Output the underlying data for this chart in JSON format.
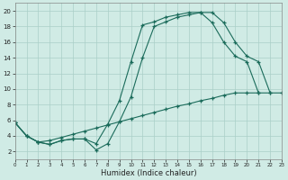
{
  "background_color": "#d0ebe5",
  "grid_color": "#aacfc8",
  "line_color": "#1a6b5a",
  "xlabel": "Humidex (Indice chaleur)",
  "xlim": [
    0,
    23
  ],
  "ylim": [
    1,
    21
  ],
  "xticks": [
    0,
    1,
    2,
    3,
    4,
    5,
    6,
    7,
    8,
    9,
    10,
    11,
    12,
    13,
    14,
    15,
    16,
    17,
    18,
    19,
    20,
    21,
    22,
    23
  ],
  "yticks": [
    2,
    4,
    6,
    8,
    10,
    12,
    14,
    16,
    18,
    20
  ],
  "curve1_x": [
    0,
    1,
    2,
    3,
    4,
    5,
    6,
    7,
    8,
    9,
    10,
    11,
    12,
    13,
    14,
    15,
    16,
    17,
    18,
    19,
    20,
    21,
    22
  ],
  "curve1_y": [
    5.7,
    4.0,
    3.2,
    2.9,
    3.4,
    3.6,
    3.6,
    2.2,
    3.0,
    5.8,
    9.0,
    14.0,
    18.0,
    18.6,
    19.2,
    19.5,
    19.8,
    19.8,
    18.5,
    16.0,
    14.2,
    13.5,
    9.5
  ],
  "curve2_x": [
    0,
    1,
    2,
    3,
    4,
    5,
    6,
    7,
    8,
    9,
    10,
    11,
    12,
    13,
    14,
    15,
    16,
    17,
    18,
    19,
    20,
    21
  ],
  "curve2_y": [
    5.7,
    4.0,
    3.2,
    2.9,
    3.4,
    3.6,
    3.6,
    3.0,
    5.5,
    8.5,
    13.5,
    18.2,
    18.6,
    19.2,
    19.5,
    19.8,
    19.8,
    18.5,
    16.0,
    14.2,
    13.5,
    9.5
  ],
  "curve3_x": [
    0,
    1,
    2,
    3,
    4,
    5,
    6,
    7,
    8,
    9,
    10,
    11,
    12,
    13,
    14,
    15,
    16,
    17,
    18,
    19,
    20,
    21,
    22,
    23
  ],
  "curve3_y": [
    5.7,
    4.0,
    3.2,
    3.4,
    3.8,
    4.2,
    4.6,
    5.0,
    5.4,
    5.8,
    6.2,
    6.6,
    7.0,
    7.4,
    7.8,
    8.1,
    8.5,
    8.8,
    9.2,
    9.5,
    9.5,
    9.5,
    9.5,
    9.5
  ]
}
